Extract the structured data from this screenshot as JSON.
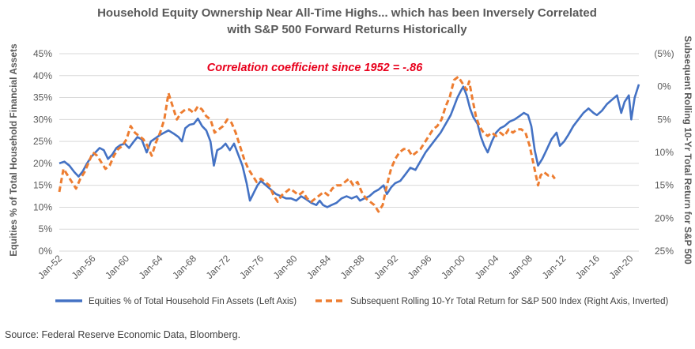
{
  "chart_data": {
    "type": "line",
    "title_line1": "Household Equity Ownership Near All-Time Highs... which has been Inversely Correlated",
    "title_line2": "with S&P 500 Forward Returns Historically",
    "ylabel_left": "Equities % of Total Household Financial Assets",
    "ylabel_right": "Subsequent Rolling 10-Yr Total Return for S&P 500",
    "annotation": "Correlation coefficient since 1952 = -.86",
    "source": "Source: Federal Reserve Economic Data, Bloomberg.",
    "x_ticks": [
      "Jan-52",
      "Jan-56",
      "Jan-60",
      "Jan-64",
      "Jan-68",
      "Jan-72",
      "Jan-76",
      "Jan-80",
      "Jan-84",
      "Jan-88",
      "Jan-92",
      "Jan-96",
      "Jan-00",
      "Jan-04",
      "Jan-08",
      "Jan-12",
      "Jan-16",
      "Jan-20"
    ],
    "x_range": [
      1952,
      2021
    ],
    "y_left_ticks": [
      "0%",
      "5%",
      "10%",
      "15%",
      "20%",
      "25%",
      "30%",
      "35%",
      "40%",
      "45%"
    ],
    "y_left_range": [
      0,
      45
    ],
    "y_right_ticks": [
      "(5%)",
      "0%",
      "5%",
      "10%",
      "15%",
      "20%",
      "25%"
    ],
    "y_right_range": [
      -5,
      25
    ],
    "y_right_inverted": true,
    "grid": true,
    "legend_position": "bottom",
    "series": [
      {
        "name": "Equities % of Total Household Fin Assets (Left Axis)",
        "axis": "left",
        "color": "#4472c4",
        "style": "solid",
        "points": [
          [
            1952.0,
            20.0
          ],
          [
            1952.6,
            20.4
          ],
          [
            1953.2,
            19.5
          ],
          [
            1953.8,
            18.0
          ],
          [
            1954.3,
            17.0
          ],
          [
            1954.8,
            18.2
          ],
          [
            1955.3,
            20.0
          ],
          [
            1955.8,
            21.5
          ],
          [
            1956.3,
            22.5
          ],
          [
            1956.8,
            23.5
          ],
          [
            1957.3,
            23.0
          ],
          [
            1957.8,
            21.0
          ],
          [
            1958.3,
            22.0
          ],
          [
            1958.8,
            23.5
          ],
          [
            1959.3,
            24.2
          ],
          [
            1959.8,
            24.5
          ],
          [
            1960.3,
            23.5
          ],
          [
            1960.8,
            24.8
          ],
          [
            1961.3,
            26.0
          ],
          [
            1961.8,
            25.5
          ],
          [
            1962.4,
            22.5
          ],
          [
            1962.9,
            25.0
          ],
          [
            1963.5,
            25.8
          ],
          [
            1964.0,
            26.5
          ],
          [
            1964.5,
            27.0
          ],
          [
            1965.0,
            27.5
          ],
          [
            1965.6,
            26.8
          ],
          [
            1966.2,
            26.0
          ],
          [
            1966.6,
            25.0
          ],
          [
            1967.0,
            28.0
          ],
          [
            1967.5,
            28.8
          ],
          [
            1968.0,
            29.0
          ],
          [
            1968.5,
            30.2
          ],
          [
            1969.0,
            28.5
          ],
          [
            1969.5,
            27.5
          ],
          [
            1970.0,
            25.0
          ],
          [
            1970.4,
            19.5
          ],
          [
            1970.8,
            23.0
          ],
          [
            1971.3,
            23.5
          ],
          [
            1971.8,
            24.5
          ],
          [
            1972.3,
            23.0
          ],
          [
            1972.8,
            24.5
          ],
          [
            1973.3,
            22.0
          ],
          [
            1973.8,
            19.5
          ],
          [
            1974.3,
            15.5
          ],
          [
            1974.7,
            11.5
          ],
          [
            1975.2,
            13.5
          ],
          [
            1975.6,
            15.0
          ],
          [
            1976.0,
            16.0
          ],
          [
            1976.6,
            15.0
          ],
          [
            1977.2,
            14.0
          ],
          [
            1977.8,
            13.0
          ],
          [
            1978.4,
            12.5
          ],
          [
            1979.0,
            12.0
          ],
          [
            1979.6,
            12.0
          ],
          [
            1980.2,
            11.5
          ],
          [
            1980.8,
            12.5
          ],
          [
            1981.4,
            11.8
          ],
          [
            1982.0,
            11.0
          ],
          [
            1982.6,
            10.5
          ],
          [
            1983.0,
            11.5
          ],
          [
            1983.4,
            10.5
          ],
          [
            1983.9,
            10.0
          ],
          [
            1984.4,
            10.5
          ],
          [
            1985.0,
            11.0
          ],
          [
            1985.6,
            12.0
          ],
          [
            1986.2,
            12.5
          ],
          [
            1986.8,
            12.0
          ],
          [
            1987.4,
            12.5
          ],
          [
            1987.8,
            11.5
          ],
          [
            1988.3,
            12.0
          ],
          [
            1988.9,
            12.5
          ],
          [
            1989.5,
            13.5
          ],
          [
            1990.0,
            14.0
          ],
          [
            1990.6,
            15.0
          ],
          [
            1991.0,
            13.0
          ],
          [
            1991.5,
            14.5
          ],
          [
            1992.0,
            15.5
          ],
          [
            1992.6,
            16.0
          ],
          [
            1993.2,
            17.5
          ],
          [
            1993.8,
            19.0
          ],
          [
            1994.4,
            18.5
          ],
          [
            1995.0,
            20.5
          ],
          [
            1995.6,
            22.5
          ],
          [
            1996.2,
            24.0
          ],
          [
            1996.8,
            25.5
          ],
          [
            1997.4,
            27.0
          ],
          [
            1998.0,
            29.0
          ],
          [
            1998.6,
            31.0
          ],
          [
            1999.0,
            33.0
          ],
          [
            1999.4,
            35.0
          ],
          [
            1999.8,
            36.5
          ],
          [
            2000.1,
            37.5
          ],
          [
            2000.5,
            35.5
          ],
          [
            2000.9,
            32.5
          ],
          [
            2001.3,
            30.5
          ],
          [
            2001.8,
            29.0
          ],
          [
            2002.2,
            26.0
          ],
          [
            2002.6,
            24.0
          ],
          [
            2003.0,
            22.5
          ],
          [
            2003.5,
            25.0
          ],
          [
            2004.0,
            27.0
          ],
          [
            2004.5,
            28.0
          ],
          [
            2005.0,
            28.5
          ],
          [
            2005.6,
            29.5
          ],
          [
            2006.2,
            30.0
          ],
          [
            2006.8,
            30.8
          ],
          [
            2007.3,
            31.5
          ],
          [
            2007.8,
            31.0
          ],
          [
            2008.2,
            28.5
          ],
          [
            2008.6,
            23.0
          ],
          [
            2009.0,
            19.5
          ],
          [
            2009.5,
            21.0
          ],
          [
            2010.0,
            23.0
          ],
          [
            2010.6,
            25.5
          ],
          [
            2011.2,
            27.0
          ],
          [
            2011.6,
            24.0
          ],
          [
            2012.1,
            25.0
          ],
          [
            2012.6,
            26.5
          ],
          [
            2013.2,
            28.5
          ],
          [
            2013.8,
            30.0
          ],
          [
            2014.4,
            31.5
          ],
          [
            2015.0,
            32.5
          ],
          [
            2015.6,
            31.5
          ],
          [
            2016.0,
            31.0
          ],
          [
            2016.6,
            32.0
          ],
          [
            2017.2,
            33.5
          ],
          [
            2017.8,
            34.5
          ],
          [
            2018.4,
            35.5
          ],
          [
            2018.9,
            31.5
          ],
          [
            2019.3,
            34.0
          ],
          [
            2019.8,
            35.5
          ],
          [
            2020.1,
            30.0
          ],
          [
            2020.5,
            35.0
          ],
          [
            2021.0,
            38.0
          ]
        ]
      },
      {
        "name": "Subsequent Rolling 10-Yr Total Return for S&P 500 Index (Right Axis, Inverted)",
        "axis": "right",
        "color": "#ed7d31",
        "style": "dashed",
        "points": [
          [
            1952.0,
            16.0
          ],
          [
            1952.5,
            12.5
          ],
          [
            1953.0,
            13.5
          ],
          [
            1953.5,
            14.5
          ],
          [
            1954.0,
            15.5
          ],
          [
            1954.5,
            14.0
          ],
          [
            1955.0,
            13.0
          ],
          [
            1955.5,
            11.5
          ],
          [
            1956.0,
            10.0
          ],
          [
            1956.5,
            10.5
          ],
          [
            1957.0,
            11.5
          ],
          [
            1957.5,
            12.5
          ],
          [
            1958.0,
            12.0
          ],
          [
            1958.5,
            10.5
          ],
          [
            1959.0,
            9.5
          ],
          [
            1959.5,
            9.0
          ],
          [
            1960.0,
            8.0
          ],
          [
            1960.5,
            6.0
          ],
          [
            1961.0,
            7.0
          ],
          [
            1961.5,
            7.5
          ],
          [
            1962.0,
            8.0
          ],
          [
            1962.5,
            9.0
          ],
          [
            1963.0,
            10.5
          ],
          [
            1963.5,
            8.5
          ],
          [
            1964.0,
            7.0
          ],
          [
            1964.5,
            5.0
          ],
          [
            1965.0,
            1.0
          ],
          [
            1965.5,
            3.0
          ],
          [
            1966.0,
            5.0
          ],
          [
            1966.5,
            4.0
          ],
          [
            1967.0,
            3.5
          ],
          [
            1967.5,
            3.5
          ],
          [
            1968.0,
            4.0
          ],
          [
            1968.5,
            3.0
          ],
          [
            1969.0,
            3.5
          ],
          [
            1969.5,
            4.5
          ],
          [
            1970.0,
            5.0
          ],
          [
            1970.5,
            7.0
          ],
          [
            1971.0,
            6.5
          ],
          [
            1971.5,
            6.0
          ],
          [
            1972.0,
            5.0
          ],
          [
            1972.5,
            5.5
          ],
          [
            1973.0,
            7.0
          ],
          [
            1973.5,
            9.0
          ],
          [
            1974.0,
            11.0
          ],
          [
            1974.5,
            12.5
          ],
          [
            1975.0,
            13.5
          ],
          [
            1975.5,
            14.5
          ],
          [
            1976.0,
            14.0
          ],
          [
            1976.5,
            14.5
          ],
          [
            1977.0,
            15.0
          ],
          [
            1977.5,
            16.5
          ],
          [
            1978.0,
            17.5
          ],
          [
            1978.5,
            16.5
          ],
          [
            1979.0,
            16.0
          ],
          [
            1979.5,
            15.5
          ],
          [
            1980.0,
            16.0
          ],
          [
            1980.5,
            16.5
          ],
          [
            1981.0,
            16.0
          ],
          [
            1981.5,
            17.0
          ],
          [
            1982.0,
            17.5
          ],
          [
            1982.5,
            17.0
          ],
          [
            1983.0,
            16.5
          ],
          [
            1983.5,
            16.0
          ],
          [
            1984.0,
            16.5
          ],
          [
            1984.5,
            15.5
          ],
          [
            1985.0,
            15.0
          ],
          [
            1985.5,
            15.0
          ],
          [
            1986.0,
            14.5
          ],
          [
            1986.5,
            14.0
          ],
          [
            1987.0,
            15.0
          ],
          [
            1987.5,
            14.5
          ],
          [
            1988.0,
            16.0
          ],
          [
            1988.5,
            17.0
          ],
          [
            1989.0,
            17.5
          ],
          [
            1989.5,
            18.0
          ],
          [
            1990.0,
            19.0
          ],
          [
            1990.5,
            18.0
          ],
          [
            1991.0,
            15.0
          ],
          [
            1991.5,
            12.5
          ],
          [
            1992.0,
            11.0
          ],
          [
            1992.5,
            10.0
          ],
          [
            1993.0,
            9.5
          ],
          [
            1993.5,
            9.5
          ],
          [
            1994.0,
            10.5
          ],
          [
            1994.5,
            10.0
          ],
          [
            1995.0,
            9.5
          ],
          [
            1995.5,
            8.5
          ],
          [
            1996.0,
            7.5
          ],
          [
            1996.5,
            6.5
          ],
          [
            1997.0,
            6.0
          ],
          [
            1997.5,
            5.0
          ],
          [
            1998.0,
            3.0
          ],
          [
            1998.5,
            1.5
          ],
          [
            1999.0,
            -1.0
          ],
          [
            1999.5,
            -1.5
          ],
          [
            2000.0,
            -0.5
          ],
          [
            2000.5,
            0.5
          ],
          [
            2000.8,
            -0.8
          ],
          [
            2001.2,
            2.0
          ],
          [
            2001.6,
            4.5
          ],
          [
            2002.0,
            6.0
          ],
          [
            2002.5,
            7.0
          ],
          [
            2003.0,
            7.5
          ],
          [
            2003.5,
            7.0
          ],
          [
            2004.0,
            7.5
          ],
          [
            2004.5,
            7.0
          ],
          [
            2005.0,
            7.5
          ],
          [
            2005.5,
            6.5
          ],
          [
            2006.0,
            7.0
          ],
          [
            2006.5,
            6.5
          ],
          [
            2007.0,
            6.5
          ],
          [
            2007.5,
            7.0
          ],
          [
            2008.0,
            9.0
          ],
          [
            2008.5,
            12.0
          ],
          [
            2009.0,
            15.0
          ],
          [
            2009.3,
            13.5
          ],
          [
            2009.7,
            13.0
          ],
          [
            2010.2,
            13.5
          ],
          [
            2010.7,
            13.5
          ],
          [
            2011.0,
            14.0
          ]
        ]
      }
    ]
  }
}
